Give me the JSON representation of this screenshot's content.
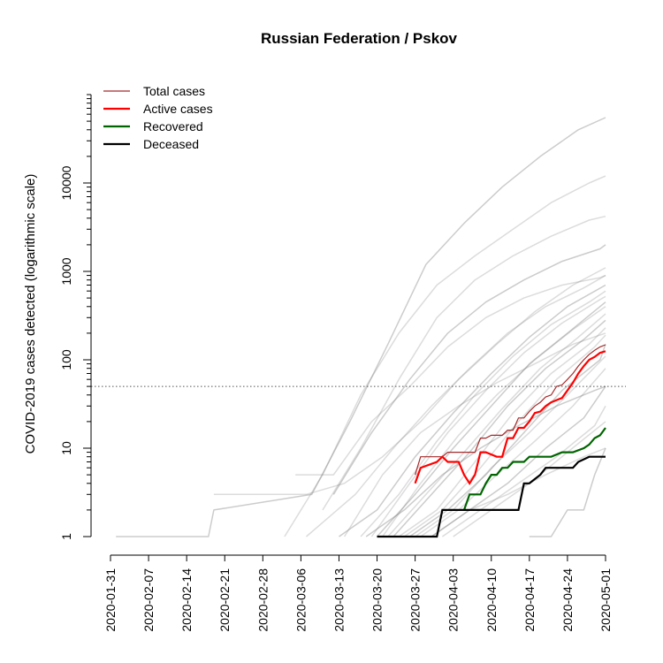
{
  "chart_data": {
    "type": "line",
    "title": "Russian Federation / Pskov",
    "ylabel": "COVID-2019 cases detected (logarithmic scale)",
    "xlabel": "",
    "y_scale": "log",
    "xlim": [
      "2020-01-31",
      "2020-05-01"
    ],
    "ylim": [
      1,
      100000
    ],
    "x_ticks": [
      "2020-01-31",
      "2020-02-07",
      "2020-02-14",
      "2020-02-21",
      "2020-02-28",
      "2020-03-06",
      "2020-03-13",
      "2020-03-20",
      "2020-03-27",
      "2020-04-03",
      "2020-04-10",
      "2020-04-17",
      "2020-04-24",
      "2020-05-01"
    ],
    "y_ticks": [
      1,
      10,
      100,
      1000,
      10000
    ],
    "threshold_line": 50,
    "legend_position": "top-left",
    "legend": [
      {
        "name": "Total cases",
        "color": "#a52a2a"
      },
      {
        "name": "Active cases",
        "color": "#ff0000"
      },
      {
        "name": "Recovered",
        "color": "#006400"
      },
      {
        "name": "Deceased",
        "color": "#000000"
      }
    ],
    "series": [
      {
        "name": "Total cases",
        "color": "#a52a2a",
        "x": [
          "2020-03-27",
          "2020-03-28",
          "2020-04-01",
          "2020-04-02",
          "2020-04-04",
          "2020-04-06",
          "2020-04-07",
          "2020-04-08",
          "2020-04-09",
          "2020-04-10",
          "2020-04-12",
          "2020-04-13",
          "2020-04-14",
          "2020-04-15",
          "2020-04-16",
          "2020-04-17",
          "2020-04-18",
          "2020-04-19",
          "2020-04-20",
          "2020-04-21",
          "2020-04-22",
          "2020-04-23",
          "2020-04-24",
          "2020-04-25",
          "2020-04-26",
          "2020-04-27",
          "2020-04-28",
          "2020-04-29",
          "2020-04-30",
          "2020-05-01"
        ],
        "values": [
          5,
          8,
          8,
          9,
          9,
          9,
          9,
          13,
          13,
          14,
          14,
          16,
          16,
          22,
          22,
          26,
          30,
          33,
          38,
          40,
          50,
          52,
          60,
          70,
          85,
          100,
          115,
          128,
          140,
          148
        ]
      },
      {
        "name": "Active cases",
        "color": "#ff0000",
        "x": [
          "2020-03-27",
          "2020-03-28",
          "2020-03-31",
          "2020-04-01",
          "2020-04-02",
          "2020-04-04",
          "2020-04-05",
          "2020-04-06",
          "2020-04-07",
          "2020-04-08",
          "2020-04-09",
          "2020-04-11",
          "2020-04-12",
          "2020-04-13",
          "2020-04-14",
          "2020-04-15",
          "2020-04-16",
          "2020-04-17",
          "2020-04-18",
          "2020-04-19",
          "2020-04-20",
          "2020-04-21",
          "2020-04-22",
          "2020-04-23",
          "2020-04-24",
          "2020-04-25",
          "2020-04-26",
          "2020-04-27",
          "2020-04-28",
          "2020-04-29",
          "2020-04-30",
          "2020-05-01"
        ],
        "values": [
          4,
          6,
          7,
          8,
          7,
          7,
          5,
          4,
          5,
          9,
          9,
          8,
          8,
          13,
          13,
          17,
          17,
          20,
          25,
          26,
          30,
          33,
          35,
          37,
          45,
          55,
          70,
          85,
          100,
          108,
          120,
          125
        ]
      },
      {
        "name": "Recovered",
        "color": "#006400",
        "x": [
          "2020-04-05",
          "2020-04-06",
          "2020-04-07",
          "2020-04-08",
          "2020-04-09",
          "2020-04-10",
          "2020-04-11",
          "2020-04-12",
          "2020-04-13",
          "2020-04-14",
          "2020-04-16",
          "2020-04-17",
          "2020-04-20",
          "2020-04-21",
          "2020-04-23",
          "2020-04-24",
          "2020-04-25",
          "2020-04-27",
          "2020-04-28",
          "2020-04-29",
          "2020-04-30",
          "2020-05-01"
        ],
        "values": [
          2,
          3,
          3,
          3,
          4,
          5,
          5,
          6,
          6,
          7,
          7,
          8,
          8,
          8,
          9,
          9,
          9,
          10,
          11,
          13,
          14,
          17
        ]
      },
      {
        "name": "Deceased",
        "color": "#000000",
        "x": [
          "2020-03-20",
          "2020-03-31",
          "2020-04-01",
          "2020-04-02",
          "2020-04-08",
          "2020-04-13",
          "2020-04-15",
          "2020-04-16",
          "2020-04-17",
          "2020-04-19",
          "2020-04-20",
          "2020-04-25",
          "2020-04-26",
          "2020-04-28",
          "2020-05-01"
        ],
        "values": [
          1,
          1,
          2,
          2,
          2,
          2,
          2,
          4,
          4,
          5,
          6,
          6,
          7,
          8,
          8
        ]
      }
    ],
    "background_series_note": "many light grey lines for other regions",
    "background_series": [
      {
        "x": [
          "2020-02-01",
          "2020-02-18",
          "2020-02-19",
          "2020-03-08",
          "2020-03-15",
          "2020-03-22",
          "2020-03-29",
          "2020-04-05",
          "2020-04-12",
          "2020-04-19",
          "2020-04-26",
          "2020-05-01"
        ],
        "values": [
          1,
          1,
          2,
          3,
          20,
          150,
          1200,
          3500,
          9000,
          20000,
          40000,
          55000
        ]
      },
      {
        "x": [
          "2020-03-03",
          "2020-03-10",
          "2020-03-17",
          "2020-03-24",
          "2020-03-31",
          "2020-04-07",
          "2020-04-14",
          "2020-04-21",
          "2020-04-28",
          "2020-05-01"
        ],
        "values": [
          1,
          5,
          40,
          200,
          700,
          1500,
          3000,
          6000,
          10000,
          12000
        ]
      },
      {
        "x": [
          "2020-03-10",
          "2020-03-17",
          "2020-03-24",
          "2020-03-31",
          "2020-04-07",
          "2020-04-14",
          "2020-04-21",
          "2020-04-28",
          "2020-05-01"
        ],
        "values": [
          2,
          10,
          60,
          300,
          800,
          1500,
          2500,
          3800,
          4200
        ]
      },
      {
        "x": [
          "2020-03-12",
          "2020-03-19",
          "2020-03-26",
          "2020-04-02",
          "2020-04-09",
          "2020-04-16",
          "2020-04-23",
          "2020-04-30",
          "2020-05-01"
        ],
        "values": [
          3,
          15,
          60,
          200,
          450,
          800,
          1300,
          1800,
          2000
        ]
      },
      {
        "x": [
          "2020-02-19",
          "2020-03-07",
          "2020-03-14",
          "2020-03-21",
          "2020-03-28",
          "2020-04-04",
          "2020-04-11",
          "2020-04-18",
          "2020-04-25",
          "2020-05-01"
        ],
        "values": [
          3,
          3,
          4,
          8,
          20,
          60,
          150,
          350,
          700,
          1100
        ]
      },
      {
        "x": [
          "2020-03-07",
          "2020-03-16",
          "2020-03-23",
          "2020-03-30",
          "2020-04-06",
          "2020-04-13",
          "2020-04-20",
          "2020-04-27",
          "2020-05-01"
        ],
        "values": [
          1,
          3,
          10,
          30,
          80,
          200,
          400,
          650,
          900
        ]
      },
      {
        "x": [
          "2020-03-13",
          "2020-03-20",
          "2020-03-27",
          "2020-04-03",
          "2020-04-10",
          "2020-04-17",
          "2020-04-24",
          "2020-05-01"
        ],
        "values": [
          1,
          2,
          8,
          25,
          70,
          180,
          400,
          700
        ]
      },
      {
        "x": [
          "2020-03-17",
          "2020-03-24",
          "2020-03-31",
          "2020-04-07",
          "2020-04-14",
          "2020-04-21",
          "2020-04-28",
          "2020-05-01"
        ],
        "values": [
          1,
          3,
          12,
          40,
          110,
          250,
          450,
          600
        ]
      },
      {
        "x": [
          "2020-03-19",
          "2020-03-26",
          "2020-04-02",
          "2020-04-09",
          "2020-04-16",
          "2020-04-23",
          "2020-04-30",
          "2020-05-01"
        ],
        "values": [
          1,
          4,
          15,
          45,
          120,
          260,
          480,
          520
        ]
      },
      {
        "x": [
          "2020-03-20",
          "2020-03-27",
          "2020-04-03",
          "2020-04-10",
          "2020-04-17",
          "2020-04-24",
          "2020-05-01"
        ],
        "values": [
          1,
          3,
          10,
          30,
          90,
          200,
          450
        ]
      },
      {
        "x": [
          "2020-03-21",
          "2020-03-28",
          "2020-04-04",
          "2020-04-11",
          "2020-04-18",
          "2020-04-25",
          "2020-05-01"
        ],
        "values": [
          1,
          4,
          14,
          40,
          100,
          220,
          400
        ]
      },
      {
        "x": [
          "2020-03-22",
          "2020-03-29",
          "2020-04-05",
          "2020-04-12",
          "2020-04-19",
          "2020-04-26",
          "2020-05-01"
        ],
        "values": [
          1,
          3,
          9,
          28,
          80,
          180,
          330
        ]
      },
      {
        "x": [
          "2020-03-23",
          "2020-03-30",
          "2020-04-06",
          "2020-04-13",
          "2020-04-20",
          "2020-04-27",
          "2020-05-01"
        ],
        "values": [
          1,
          3,
          9,
          30,
          80,
          170,
          280
        ]
      },
      {
        "x": [
          "2020-03-24",
          "2020-03-31",
          "2020-04-07",
          "2020-04-14",
          "2020-04-21",
          "2020-04-28",
          "2020-05-01"
        ],
        "values": [
          1,
          2,
          7,
          25,
          70,
          150,
          230
        ]
      },
      {
        "x": [
          "2020-03-25",
          "2020-04-01",
          "2020-04-08",
          "2020-04-15",
          "2020-04-22",
          "2020-04-29",
          "2020-05-01"
        ],
        "values": [
          1,
          2,
          6,
          20,
          60,
          140,
          190
        ]
      },
      {
        "x": [
          "2020-03-26",
          "2020-04-02",
          "2020-04-09",
          "2020-04-16",
          "2020-04-23",
          "2020-04-30",
          "2020-05-01"
        ],
        "values": [
          1,
          2,
          5,
          15,
          45,
          100,
          150
        ]
      },
      {
        "x": [
          "2020-03-27",
          "2020-04-03",
          "2020-04-10",
          "2020-04-17",
          "2020-04-24",
          "2020-05-01"
        ],
        "values": [
          1,
          2,
          6,
          15,
          40,
          110
        ]
      },
      {
        "x": [
          "2020-03-28",
          "2020-04-04",
          "2020-04-11",
          "2020-04-18",
          "2020-04-25",
          "2020-05-01"
        ],
        "values": [
          1,
          2,
          5,
          12,
          30,
          80
        ]
      },
      {
        "x": [
          "2020-03-30",
          "2020-04-06",
          "2020-04-13",
          "2020-04-20",
          "2020-04-27",
          "2020-05-01"
        ],
        "values": [
          1,
          2,
          4,
          10,
          22,
          50
        ]
      },
      {
        "x": [
          "2020-04-01",
          "2020-04-08",
          "2020-04-15",
          "2020-04-22",
          "2020-04-29",
          "2020-05-01"
        ],
        "values": [
          1,
          2,
          4,
          8,
          18,
          30
        ]
      },
      {
        "x": [
          "2020-04-03",
          "2020-04-10",
          "2020-04-17",
          "2020-04-24",
          "2020-05-01"
        ],
        "values": [
          1,
          2,
          4,
          9,
          20
        ]
      },
      {
        "x": [
          "2020-04-17",
          "2020-04-21",
          "2020-04-24",
          "2020-04-27",
          "2020-04-29",
          "2020-05-01"
        ],
        "values": [
          1,
          1,
          2,
          2,
          5,
          10
        ]
      },
      {
        "x": [
          "2020-03-05",
          "2020-03-12",
          "2020-03-19",
          "2020-03-26",
          "2020-04-02",
          "2020-04-09",
          "2020-04-16",
          "2020-04-23",
          "2020-04-30",
          "2020-05-01"
        ],
        "values": [
          5,
          5,
          20,
          50,
          140,
          300,
          500,
          700,
          850,
          900
        ]
      },
      {
        "x": [
          "2020-03-14",
          "2020-03-21",
          "2020-03-28",
          "2020-04-04",
          "2020-04-11",
          "2020-04-18",
          "2020-04-25",
          "2020-05-01"
        ],
        "values": [
          1,
          5,
          15,
          30,
          55,
          90,
          150,
          200
        ]
      },
      {
        "x": [
          "2020-03-18",
          "2020-03-25",
          "2020-04-01",
          "2020-04-08",
          "2020-04-15",
          "2020-04-22",
          "2020-04-29",
          "2020-05-01"
        ],
        "values": [
          1,
          2,
          5,
          10,
          18,
          30,
          45,
          50
        ]
      },
      {
        "x": [
          "2020-03-23",
          "2020-03-30",
          "2020-04-06",
          "2020-04-13",
          "2020-04-20",
          "2020-04-27",
          "2020-05-01"
        ],
        "values": [
          1,
          1,
          2,
          3,
          5,
          8,
          10
        ]
      }
    ]
  }
}
